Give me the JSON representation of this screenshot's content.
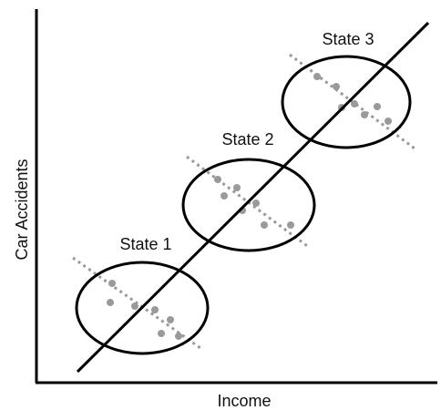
{
  "x_axis_label": "Income",
  "y_axis_label": "Car Accidents",
  "groups": [
    {
      "label": "State 1"
    },
    {
      "label": "State 2"
    },
    {
      "label": "State 3"
    }
  ]
}
